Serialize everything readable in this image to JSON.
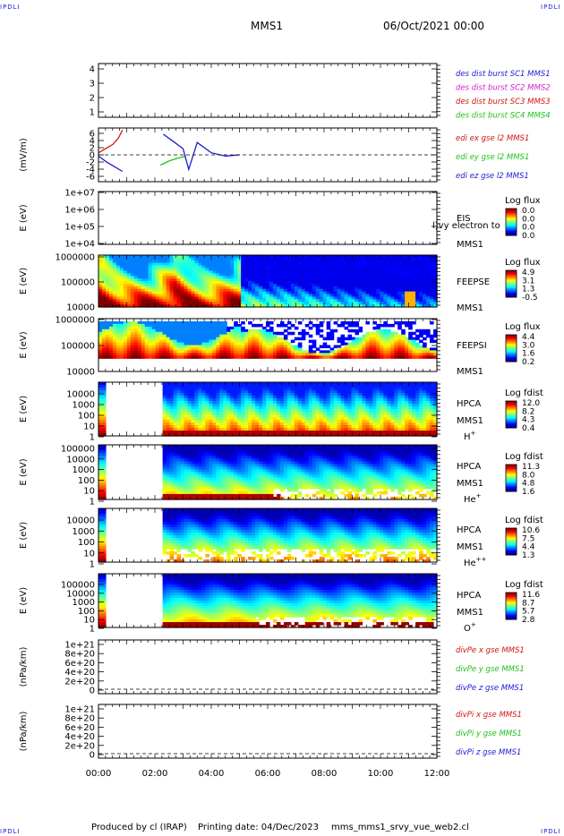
{
  "header": {
    "corner_tl": "IPDLI",
    "corner_tr": "IPDLI",
    "corner_bl": "IPDLI",
    "corner_br": "IPDLI",
    "mission": "MMS1",
    "date": "06/Oct/2021 00:00"
  },
  "footer": {
    "produced_by": "Produced by cl (IRAP)",
    "printing_date": "Printing date: 04/Dec/2023",
    "filename": "mms_mms1_srvy_vue_web2.cl"
  },
  "colors": {
    "blue": "#1b1bd0",
    "magenta": "#d020d0",
    "red": "#d01414",
    "green": "#20c020",
    "axis": "#000000"
  },
  "chart_data": [
    {
      "type": "line",
      "id": "des-dist",
      "ylabel": "",
      "yticks": [
        "4",
        "3",
        "2",
        "1"
      ],
      "legend": [
        {
          "text": "des dist burst SC1 MMS1",
          "color": "#1b1bd0"
        },
        {
          "text": "des dist burst SC2 MMS2",
          "color": "#d020d0"
        },
        {
          "text": "des dist burst SC3 MMS3",
          "color": "#d01414"
        },
        {
          "text": "des dist burst SC4 MMS4",
          "color": "#20c020"
        }
      ],
      "series": []
    },
    {
      "type": "line",
      "id": "edi-e",
      "ylabel": "(mV/m)",
      "yticks": [
        "6",
        "4",
        "2",
        "0",
        "-2",
        "-4",
        "-6"
      ],
      "ylim": [
        -6.5,
        6.5
      ],
      "legend": [
        {
          "text": "edi ex gse l2 MMS1",
          "color": "#d01414"
        },
        {
          "text": "edi ey gse l2 MMS1",
          "color": "#20c020"
        },
        {
          "text": "edi ez gse l2 MMS1",
          "color": "#1b1bd0"
        }
      ],
      "series": [
        {
          "color": "#d01414",
          "x": [
            0.0,
            0.25,
            0.5,
            0.7,
            0.85
          ],
          "values": [
            0.5,
            1.5,
            2.5,
            4.0,
            6.0
          ]
        },
        {
          "color": "#20c020",
          "x": [
            2.2,
            2.5,
            2.8,
            3.1
          ],
          "values": [
            -2.5,
            -1.5,
            -0.8,
            -0.3
          ]
        },
        {
          "color": "#1b1bd0",
          "x": [
            0.0,
            0.3,
            0.6,
            0.85
          ],
          "values": [
            -0.3,
            -1.8,
            -3.0,
            -4.0
          ]
        },
        {
          "color": "#1b1bd0",
          "x": [
            2.3,
            2.6,
            3.0,
            3.2,
            3.5,
            4.0,
            4.5,
            5.0
          ],
          "values": [
            5.0,
            3.5,
            1.5,
            -3.5,
            3.0,
            0.5,
            -0.3,
            0.0
          ]
        }
      ]
    },
    {
      "type": "heatmap",
      "id": "eis",
      "ylabel": "E (eV)",
      "yticks": [
        "1e+07",
        "1e+06",
        "1e+05",
        "1e+04"
      ],
      "side_labels": [
        "EIS",
        "MMS1"
      ],
      "overlay_text": "l)vy electron to",
      "colorbar_title": "Log flux",
      "colorbar_ticks": [
        "0.0",
        "0.0",
        "0.0",
        "0.0"
      ]
    },
    {
      "type": "heatmap",
      "id": "feeps-e",
      "ylabel": "E (eV)",
      "yticks": [
        "1000000",
        "100000",
        "10000"
      ],
      "side_labels": [
        "FEEPSE",
        "MMS1"
      ],
      "colorbar_title": "Log flux",
      "colorbar_ticks": [
        "4.9",
        "3.1",
        "1.3",
        "-0.5"
      ]
    },
    {
      "type": "heatmap",
      "id": "feeps-i",
      "ylabel": "E (eV)",
      "yticks": [
        "1000000",
        "100000",
        "10000"
      ],
      "side_labels": [
        "FEEPSI",
        "MMS1"
      ],
      "colorbar_title": "Log flux",
      "colorbar_ticks": [
        "4.4",
        "3.0",
        "1.6",
        "0.2"
      ]
    },
    {
      "type": "heatmap",
      "id": "hpca-h",
      "ylabel": "E (eV)",
      "yticks": [
        "10000",
        "1000",
        "100",
        "10",
        "1"
      ],
      "side_labels": [
        "HPCA",
        "MMS1",
        "H+"
      ],
      "colorbar_title": "Log fdist",
      "colorbar_ticks": [
        "12.0",
        "8.2",
        "4.3",
        "0.4"
      ]
    },
    {
      "type": "heatmap",
      "id": "hpca-he",
      "ylabel": "E (eV)",
      "yticks": [
        "100000",
        "10000",
        "1000",
        "100",
        "10",
        "1"
      ],
      "side_labels": [
        "HPCA",
        "MMS1",
        "He+"
      ],
      "colorbar_title": "Log fdist",
      "colorbar_ticks": [
        "11.3",
        "8.0",
        "4.8",
        "1.6"
      ]
    },
    {
      "type": "heatmap",
      "id": "hpca-hepp",
      "ylabel": "E (eV)",
      "yticks": [
        "10000",
        "1000",
        "100",
        "10",
        "1"
      ],
      "side_labels": [
        "HPCA",
        "MMS1",
        "He++"
      ],
      "colorbar_title": "Log fdist",
      "colorbar_ticks": [
        "10.6",
        "7.5",
        "4.4",
        "1.3"
      ]
    },
    {
      "type": "heatmap",
      "id": "hpca-o",
      "ylabel": "E (eV)",
      "yticks": [
        "100000",
        "10000",
        "1000",
        "100",
        "10",
        "1"
      ],
      "side_labels": [
        "HPCA",
        "MMS1",
        "O+"
      ],
      "colorbar_title": "Log fdist",
      "colorbar_ticks": [
        "11.6",
        "8.7",
        "5.7",
        "2.8"
      ]
    },
    {
      "type": "line",
      "id": "divpe",
      "ylabel": "(nPa/km)",
      "yticks": [
        "1e+21",
        "8e+20",
        "6e+20",
        "4e+20",
        "2e+20",
        "0"
      ],
      "legend": [
        {
          "text": "divPe x gse MMS1",
          "color": "#d01414"
        },
        {
          "text": "divPe y gse MMS1",
          "color": "#20c020"
        },
        {
          "text": "divPe z gse MMS1",
          "color": "#1b1bd0"
        }
      ],
      "series": []
    },
    {
      "type": "line",
      "id": "divpi",
      "ylabel": "(nPa/km)",
      "yticks": [
        "1e+21",
        "8e+20",
        "6e+20",
        "4e+20",
        "2e+20",
        "0"
      ],
      "legend": [
        {
          "text": "divPi x gse MMS1",
          "color": "#d01414"
        },
        {
          "text": "divPi y gse MMS1",
          "color": "#20c020"
        },
        {
          "text": "divPi z gse MMS1",
          "color": "#1b1bd0"
        }
      ],
      "series": []
    }
  ],
  "xaxis": {
    "ticks": [
      "00:00",
      "02:00",
      "04:00",
      "06:00",
      "08:00",
      "10:00",
      "12:00"
    ],
    "xlim": [
      0,
      12
    ]
  }
}
